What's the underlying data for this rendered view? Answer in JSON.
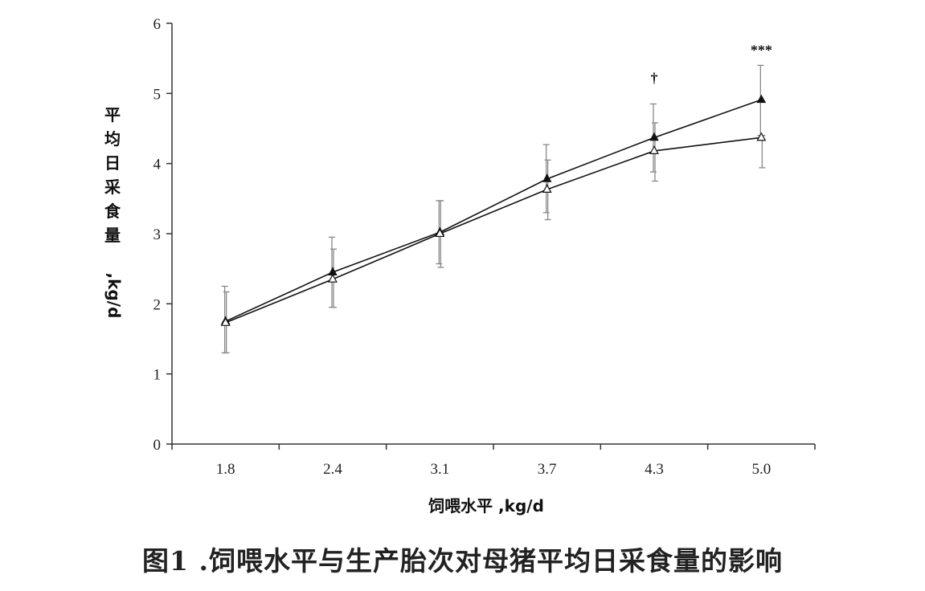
{
  "chart_data": {
    "type": "line",
    "categories": [
      "1.8",
      "2.4",
      "3.1",
      "3.7",
      "4.3",
      "5.0"
    ],
    "series": [
      {
        "marker": "filled-triangle",
        "values": [
          1.75,
          2.45,
          3.02,
          3.78,
          4.37,
          4.91
        ],
        "error_low": [
          1.3,
          1.95,
          2.57,
          3.3,
          3.88,
          4.4
        ],
        "error_high": [
          2.25,
          2.95,
          3.47,
          4.27,
          4.85,
          5.4
        ]
      },
      {
        "marker": "open-triangle",
        "values": [
          1.73,
          2.35,
          3.0,
          3.63,
          4.18,
          4.37
        ],
        "error_low": [
          1.3,
          1.95,
          2.52,
          3.2,
          3.75,
          3.94
        ],
        "error_high": [
          2.17,
          2.78,
          3.47,
          4.05,
          4.58,
          4.4
        ]
      }
    ],
    "annotations": [
      {
        "category": "4.3",
        "text": "†",
        "y": 5.15
      },
      {
        "category": "5.0",
        "text": "***",
        "y": 5.55
      }
    ],
    "ylim": [
      0,
      6
    ],
    "yticks": [
      0,
      1,
      2,
      3,
      4,
      5,
      6
    ],
    "xlabel": "饲喂水平 ,kg/d",
    "ylabel_chars": [
      "平",
      "均",
      "日",
      "采",
      "食",
      "量"
    ],
    "ylabel_unit": ",kg/d",
    "grid": false
  },
  "caption": "图1 .饲喂水平与生产胎次对母猪平均日采食量的影响",
  "colors": {
    "line": "#111111",
    "error_bar": "#888888",
    "axis": "#333333"
  }
}
